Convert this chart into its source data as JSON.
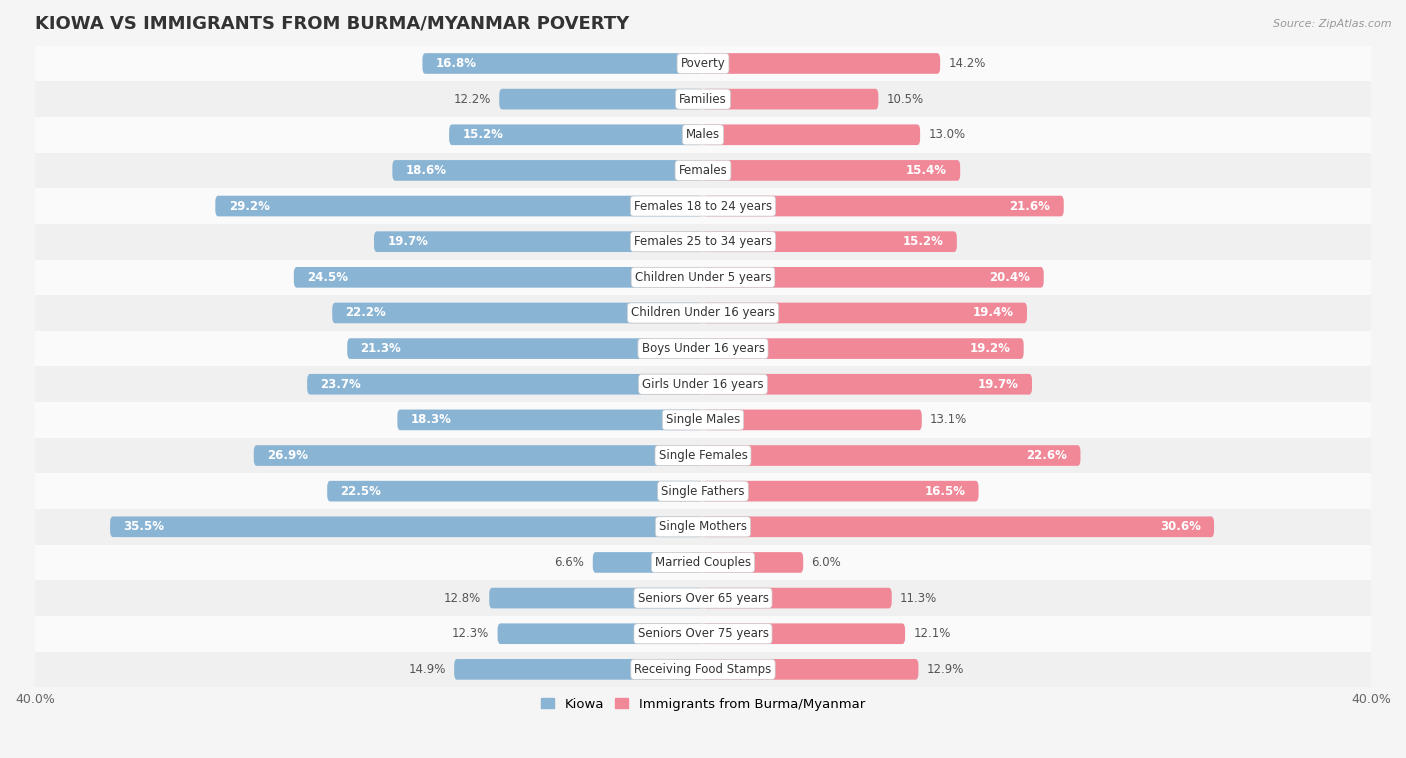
{
  "title": "KIOWA VS IMMIGRANTS FROM BURMA/MYANMAR POVERTY",
  "source": "Source: ZipAtlas.com",
  "categories": [
    "Poverty",
    "Families",
    "Males",
    "Females",
    "Females 18 to 24 years",
    "Females 25 to 34 years",
    "Children Under 5 years",
    "Children Under 16 years",
    "Boys Under 16 years",
    "Girls Under 16 years",
    "Single Males",
    "Single Females",
    "Single Fathers",
    "Single Mothers",
    "Married Couples",
    "Seniors Over 65 years",
    "Seniors Over 75 years",
    "Receiving Food Stamps"
  ],
  "kiowa": [
    16.8,
    12.2,
    15.2,
    18.6,
    29.2,
    19.7,
    24.5,
    22.2,
    21.3,
    23.7,
    18.3,
    26.9,
    22.5,
    35.5,
    6.6,
    12.8,
    12.3,
    14.9
  ],
  "immigrants": [
    14.2,
    10.5,
    13.0,
    15.4,
    21.6,
    15.2,
    20.4,
    19.4,
    19.2,
    19.7,
    13.1,
    22.6,
    16.5,
    30.6,
    6.0,
    11.3,
    12.1,
    12.9
  ],
  "kiowa_color": "#8ab4d4",
  "immigrants_color": "#f08898",
  "background_row_odd": "#f0f0f0",
  "background_row_even": "#fafafa",
  "xlim": 40.0,
  "bar_height": 0.58,
  "title_fontsize": 13,
  "value_fontsize": 8.5,
  "category_fontsize": 8.5,
  "axis_fontsize": 9,
  "legend_fontsize": 9.5,
  "inside_label_threshold": 15
}
